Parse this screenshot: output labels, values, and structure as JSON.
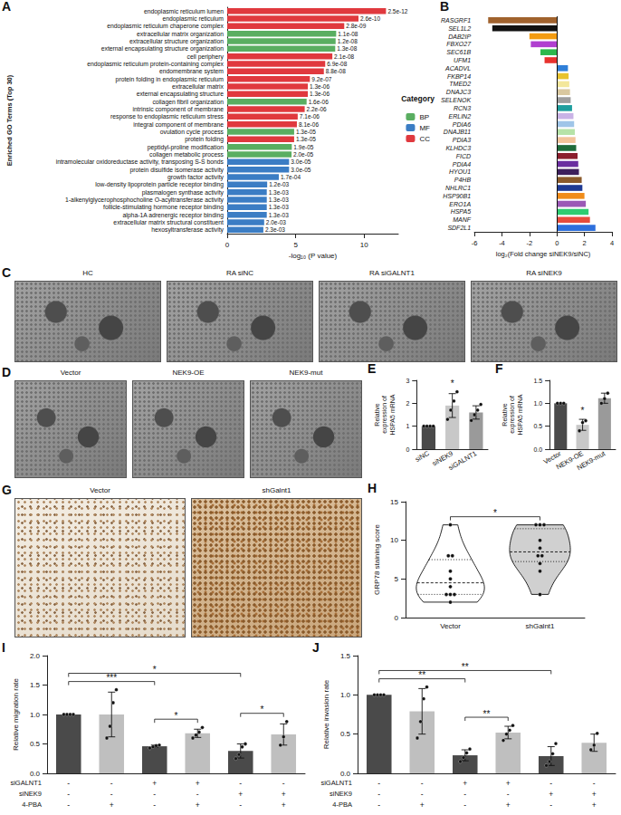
{
  "chart_data": [
    {
      "panel": "A",
      "type": "bar",
      "orientation": "horizontal",
      "y_label": "Enriched GO Terms (Top 30)",
      "x_label": "-log₁₀ (P value)",
      "legend_title": "Category",
      "legend": "right",
      "data_labels": true,
      "grid": false,
      "xlim": [
        0,
        12.5
      ],
      "xticks": [
        0,
        5,
        10
      ],
      "categories": [
        "endoplasmic reticulum lumen",
        "endoplasmic reticulum",
        "endoplasmic reticulum chaperone complex",
        "extracellular matrix organization",
        "extracellular structure organization",
        "external encapsulating structure organization",
        "cell periphery",
        "endoplasmic reticulum protein-containing complex",
        "endomembrane system",
        "protein folding in endoplasmic reticulum",
        "extracellular matrix",
        "external encapsulating structure",
        "collagen fibril organization",
        "intrinsic component of membrane",
        "response to endoplasmic reticulum stress",
        "integral component of membrane",
        "ovulation cycle process",
        "protein folding",
        "peptidyl-proline modification",
        "collagen metabolic process",
        "intramolecular oxidoreductase activity, transposing S-S bonds",
        "protein disulfide isomerase activity",
        "growth factor activity",
        "low-density lipoprotein particle receptor binding",
        "plasmalogen synthase activity",
        "1-alkenylglycerophosphocholine O-acyltransferase activity",
        "follicle-stimulating hormone receptor binding",
        "alpha-1A adrenergic receptor binding",
        "extracellular matrix structural constituent",
        "hexosyltransferase activity"
      ],
      "series": [
        {
          "name": "BP",
          "color": "#5aae61",
          "values": [
            null,
            null,
            null,
            7.96,
            7.92,
            7.89,
            null,
            null,
            null,
            null,
            null,
            null,
            5.8,
            null,
            null,
            null,
            4.89,
            null,
            4.72,
            4.7,
            null,
            null,
            null,
            null,
            null,
            null,
            null,
            null,
            null,
            null
          ],
          "value_labels": [
            null,
            null,
            null,
            "1.1e-08",
            "1.2e-08",
            "1.3e-08",
            null,
            null,
            null,
            null,
            null,
            null,
            "1.6e-06",
            null,
            null,
            null,
            "1.3e-05",
            null,
            "1.9e-05",
            "2.0e-05",
            null,
            null,
            null,
            null,
            null,
            null,
            null,
            null,
            null,
            null
          ]
        },
        {
          "name": "MF",
          "color": "#3b7dc4",
          "values": [
            null,
            null,
            null,
            null,
            null,
            null,
            null,
            null,
            null,
            null,
            null,
            null,
            null,
            null,
            null,
            null,
            null,
            null,
            null,
            null,
            4.52,
            4.52,
            3.77,
            2.92,
            2.89,
            2.89,
            2.89,
            2.89,
            2.7,
            2.64
          ],
          "value_labels": [
            null,
            null,
            null,
            null,
            null,
            null,
            null,
            null,
            null,
            null,
            null,
            null,
            null,
            null,
            null,
            null,
            null,
            null,
            null,
            null,
            "3.0e-05",
            "3.0e-05",
            "1.7e-04",
            "1.2e-03",
            "1.3e-03",
            "1.3e-03",
            "1.3e-03",
            "1.3e-03",
            "2.0e-03",
            "2.3e-03"
          ]
        },
        {
          "name": "CC",
          "color": "#e0393e",
          "values": [
            11.6,
            9.59,
            8.55,
            null,
            null,
            null,
            7.68,
            7.16,
            7.06,
            6.04,
            5.89,
            5.89,
            null,
            5.66,
            5.15,
            5.09,
            null,
            4.89,
            null,
            null,
            null,
            null,
            null,
            null,
            null,
            null,
            null,
            null,
            null,
            null
          ],
          "value_labels": [
            "2.5e-12",
            "2.6e-10",
            "2.8e-09",
            null,
            null,
            null,
            "2.1e-08",
            "6.9e-08",
            "8.8e-08",
            "9.2e-07",
            "1.3e-06",
            "1.3e-06",
            null,
            "2.2e-06",
            "7.1e-06",
            "8.1e-06",
            null,
            "1.3e-05",
            null,
            null,
            null,
            null,
            null,
            null,
            null,
            null,
            null,
            null,
            null,
            null
          ]
        }
      ]
    },
    {
      "panel": "B",
      "type": "bar",
      "orientation": "horizontal",
      "grid": false,
      "x_label": "log₂(Fold change siNEK9/siNC)",
      "xlim": [
        -6,
        4
      ],
      "xticks": [
        -6,
        -4,
        -2,
        0,
        2,
        4
      ],
      "categories": [
        "RASGRF1",
        "SEL1L2",
        "DAB2IP",
        "FBXO27",
        "SEC61B",
        "UFM1",
        "ACADVL",
        "FKBP14",
        "TMED2",
        "DNAJC3",
        "SELENOK",
        "RCN3",
        "ERLIN2",
        "PDIA6",
        "DNAJB11",
        "PDIA3",
        "KLHDC3",
        "FICD",
        "PDIA4",
        "HYOU1",
        "P4HB",
        "NHLRC1",
        "HSP90B1",
        "ERO1A",
        "HSPA5",
        "MANF",
        "SDF2L1"
      ],
      "values": [
        -5.0,
        -4.7,
        -2.0,
        -1.9,
        -1.2,
        -0.9,
        0.8,
        0.85,
        0.9,
        0.95,
        1.0,
        1.1,
        1.2,
        1.25,
        1.3,
        1.35,
        1.4,
        1.5,
        1.55,
        1.6,
        1.8,
        1.85,
        2.0,
        2.1,
        2.3,
        2.4,
        2.8
      ],
      "colors": [
        "#a0622d",
        "#111111",
        "#f39c12",
        "#b03fd0",
        "#2db84d",
        "#e8322e",
        "#2f7fd8",
        "#e8c32f",
        "#f3e79b",
        "#d9c8a0",
        "#9e9e9e",
        "#1f9e9e",
        "#c9b3e6",
        "#9fc5e8",
        "#b6e3a8",
        "#f2c49b",
        "#1e6b3a",
        "#8b1e2d",
        "#6a2ea0",
        "#3d1f5c",
        "#8b5a2b",
        "#1f3a93",
        "#f08c1a",
        "#9b59b6",
        "#2ecc71",
        "#e74c3c",
        "#2e6fdc"
      ]
    },
    {
      "panel": "E",
      "type": "bar",
      "grid": false,
      "categories": [
        "siNC",
        "siNEK9",
        "siGALNT1"
      ],
      "values": [
        1,
        1.9,
        1.6
      ],
      "errors": [
        0,
        0.52,
        0.29
      ],
      "points": [
        [
          1,
          1,
          1,
          1
        ],
        [
          1.3,
          1.7,
          2.1,
          2.5
        ],
        [
          1.25,
          1.5,
          1.7,
          1.95
        ]
      ],
      "colors": [
        "#4a4a4a",
        "#c8c8c8",
        "#9a9a9a"
      ],
      "y_label": "Relative expression of HSPA5 mRNA",
      "ylim": [
        0,
        3
      ],
      "yticks": [
        0,
        1,
        2,
        3
      ],
      "significance": [
        {
          "from": 1,
          "to": 1,
          "label": "*"
        }
      ]
    },
    {
      "panel": "F",
      "type": "bar",
      "grid": false,
      "categories": [
        "Vector",
        "NEK9-OE",
        "NEK9-mut"
      ],
      "values": [
        1,
        0.53,
        1.11
      ],
      "errors": [
        0,
        0.12,
        0.11
      ],
      "points": [
        [
          1,
          1,
          1
        ],
        [
          0.4,
          0.58,
          0.62
        ],
        [
          1.0,
          1.1,
          1.22
        ]
      ],
      "colors": [
        "#4a4a4a",
        "#c8c8c8",
        "#9a9a9a"
      ],
      "y_label": "Relative expression of HSPA5 mRNA",
      "ylim": [
        0,
        1.5
      ],
      "yticks": [
        {
          "value": 0,
          "label": "0.0"
        },
        0.5,
        {
          "value": 1,
          "label": "1.0"
        },
        1.5
      ],
      "significance": [
        {
          "from": 1,
          "to": 1,
          "label": "*"
        }
      ]
    },
    {
      "panel": "H",
      "type": "violin",
      "grid": false,
      "categories": [
        "Vector",
        "shGalnt1"
      ],
      "points": [
        [
          2,
          3,
          3,
          3,
          4,
          5,
          6,
          8,
          8,
          12
        ],
        [
          3,
          6,
          7,
          8,
          8,
          9,
          10,
          12,
          12,
          12
        ]
      ],
      "colors": [
        "#ffffff",
        "#d0d0d0"
      ],
      "y_label": "GRP78 staining score",
      "ylim": [
        0,
        15
      ],
      "yticks": [
        0,
        5,
        10,
        15
      ],
      "significance": [
        {
          "from": 0,
          "to": 1,
          "label": "*"
        }
      ]
    },
    {
      "panel": "I",
      "type": "bar",
      "grid": false,
      "categories": [
        null,
        null,
        null,
        null,
        null,
        null
      ],
      "values": [
        1.0,
        1.0,
        0.46,
        0.68,
        0.38,
        0.66
      ],
      "errors": [
        0,
        0.38,
        0.02,
        0.07,
        0.12,
        0.18
      ],
      "points": [
        [
          1,
          1,
          1,
          1
        ],
        [
          0.6,
          0.8,
          1.2,
          1.42
        ],
        [
          0.43,
          0.45,
          0.47,
          0.48
        ],
        [
          0.6,
          0.65,
          0.7,
          0.78
        ],
        [
          0.25,
          0.32,
          0.45,
          0.5
        ],
        [
          0.48,
          0.62,
          0.88
        ]
      ],
      "colors": [
        "#4a4a4a",
        "#bfbfbf",
        "#4a4a4a",
        "#bfbfbf",
        "#4a4a4a",
        "#bfbfbf"
      ],
      "y_label": "Relative migration rate",
      "ylim": [
        0,
        2
      ],
      "yticks": [
        {
          "value": 0,
          "label": "0.0"
        },
        0.5,
        {
          "value": 1,
          "label": "1.0"
        },
        1.5,
        {
          "value": 2,
          "label": "2.0"
        }
      ],
      "table": [
        {
          "label": "siGALNT1",
          "values": [
            "-",
            "-",
            "+",
            "+",
            "-",
            "-"
          ]
        },
        {
          "label": "siNEK9",
          "values": [
            "-",
            "-",
            "-",
            "-",
            "+",
            "+"
          ]
        },
        {
          "label": "4-PBA",
          "values": [
            "-",
            "+",
            "-",
            "+",
            "-",
            "+"
          ]
        }
      ],
      "significance": [
        {
          "from": 0,
          "to": 2,
          "label": "***"
        },
        {
          "from": 2,
          "to": 3,
          "label": "*"
        },
        {
          "from": 4,
          "to": 5,
          "label": "*"
        },
        {
          "from": 0,
          "to": 4,
          "label": "*"
        }
      ]
    },
    {
      "panel": "J",
      "type": "bar",
      "grid": false,
      "categories": [
        null,
        null,
        null,
        null,
        null,
        null
      ],
      "values": [
        1.0,
        0.79,
        0.23,
        0.52,
        0.22,
        0.39
      ],
      "errors": [
        0,
        0.29,
        0.07,
        0.08,
        0.12,
        0.11
      ],
      "points": [
        [
          1,
          1,
          1,
          1
        ],
        [
          0.45,
          0.66,
          0.95,
          1.1
        ],
        [
          0.15,
          0.2,
          0.26,
          0.31
        ],
        [
          0.42,
          0.5,
          0.55,
          0.61
        ],
        [
          0.1,
          0.15,
          0.25,
          0.38
        ],
        [
          0.3,
          0.36,
          0.51
        ]
      ],
      "colors": [
        "#4a4a4a",
        "#bfbfbf",
        "#4a4a4a",
        "#bfbfbf",
        "#4a4a4a",
        "#bfbfbf"
      ],
      "y_label": "Relative invasion rate",
      "ylim": [
        0,
        1.5
      ],
      "yticks": [
        {
          "value": 0,
          "label": "0.0"
        },
        0.5,
        {
          "value": 1,
          "label": "1.0"
        },
        1.5
      ],
      "table": [
        {
          "label": "siGALNT1",
          "values": [
            "-",
            "-",
            "+",
            "+",
            "-",
            "-"
          ]
        },
        {
          "label": "siNEK9",
          "values": [
            "-",
            "-",
            "-",
            "-",
            "+",
            "+"
          ]
        },
        {
          "label": "4-PBA",
          "values": [
            "-",
            "+",
            "-",
            "+",
            "-",
            "+"
          ]
        }
      ],
      "significance": [
        {
          "from": 0,
          "to": 2,
          "label": "**"
        },
        {
          "from": 2,
          "to": 3,
          "label": "**"
        },
        {
          "from": 0,
          "to": 4,
          "label": "**"
        }
      ]
    }
  ],
  "images": [
    {
      "panel": "C",
      "labels": [
        "HC",
        "RA siNC",
        "RA siGALNT1",
        "RA siNEK9"
      ]
    },
    {
      "panel": "D",
      "labels": [
        "Vector",
        "NEK9-OE",
        "NEK9-mut"
      ]
    },
    {
      "panel": "G",
      "labels": [
        "Vector",
        "shGalnt1"
      ]
    }
  ]
}
